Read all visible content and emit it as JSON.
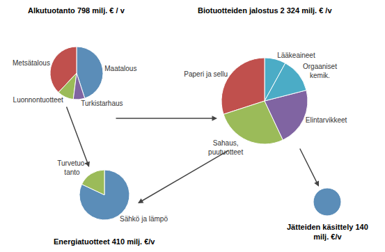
{
  "chart_data": [
    {
      "type": "pie",
      "title": "Alkutuotanto 798 milj. € / v",
      "categories": [
        "Maatalous",
        "Metsätalous",
        "Luonnontuotteet",
        "Turkistarhaus"
      ],
      "values": [
        45,
        38,
        10,
        7
      ],
      "colors": [
        "#5B8DB8",
        "#C0504D",
        "#9BBB59",
        "#8064A2"
      ]
    },
    {
      "type": "pie",
      "title": "Biotuotteiden jalostus 2 324 milj. € /v",
      "categories": [
        "Lääkeaineet",
        "Paperi ja sellu",
        "Sahaus,\npuutuotteet",
        "Elintarvikkeet",
        "Orgaaniset\nkemik."
      ],
      "values": [
        8,
        30,
        27,
        22,
        13
      ],
      "colors": [
        "#4BACC6",
        "#C0504D",
        "#9BBB59",
        "#8064A2",
        "#4BACC6"
      ]
    },
    {
      "type": "pie",
      "title": "Energiatuotteet 410 milj. €/v",
      "categories": [
        "Sähkö ja lämpö",
        "Turvetuo-\ntanto"
      ],
      "values": [
        82,
        18
      ],
      "colors": [
        "#5B8DB8",
        "#9BBB59"
      ]
    },
    {
      "type": "pie",
      "title": "Jätteiden käsittely 140\nmilj. €/v",
      "categories": [
        null
      ],
      "values": [
        100
      ],
      "colors": [
        "#5B8DB8"
      ]
    }
  ]
}
